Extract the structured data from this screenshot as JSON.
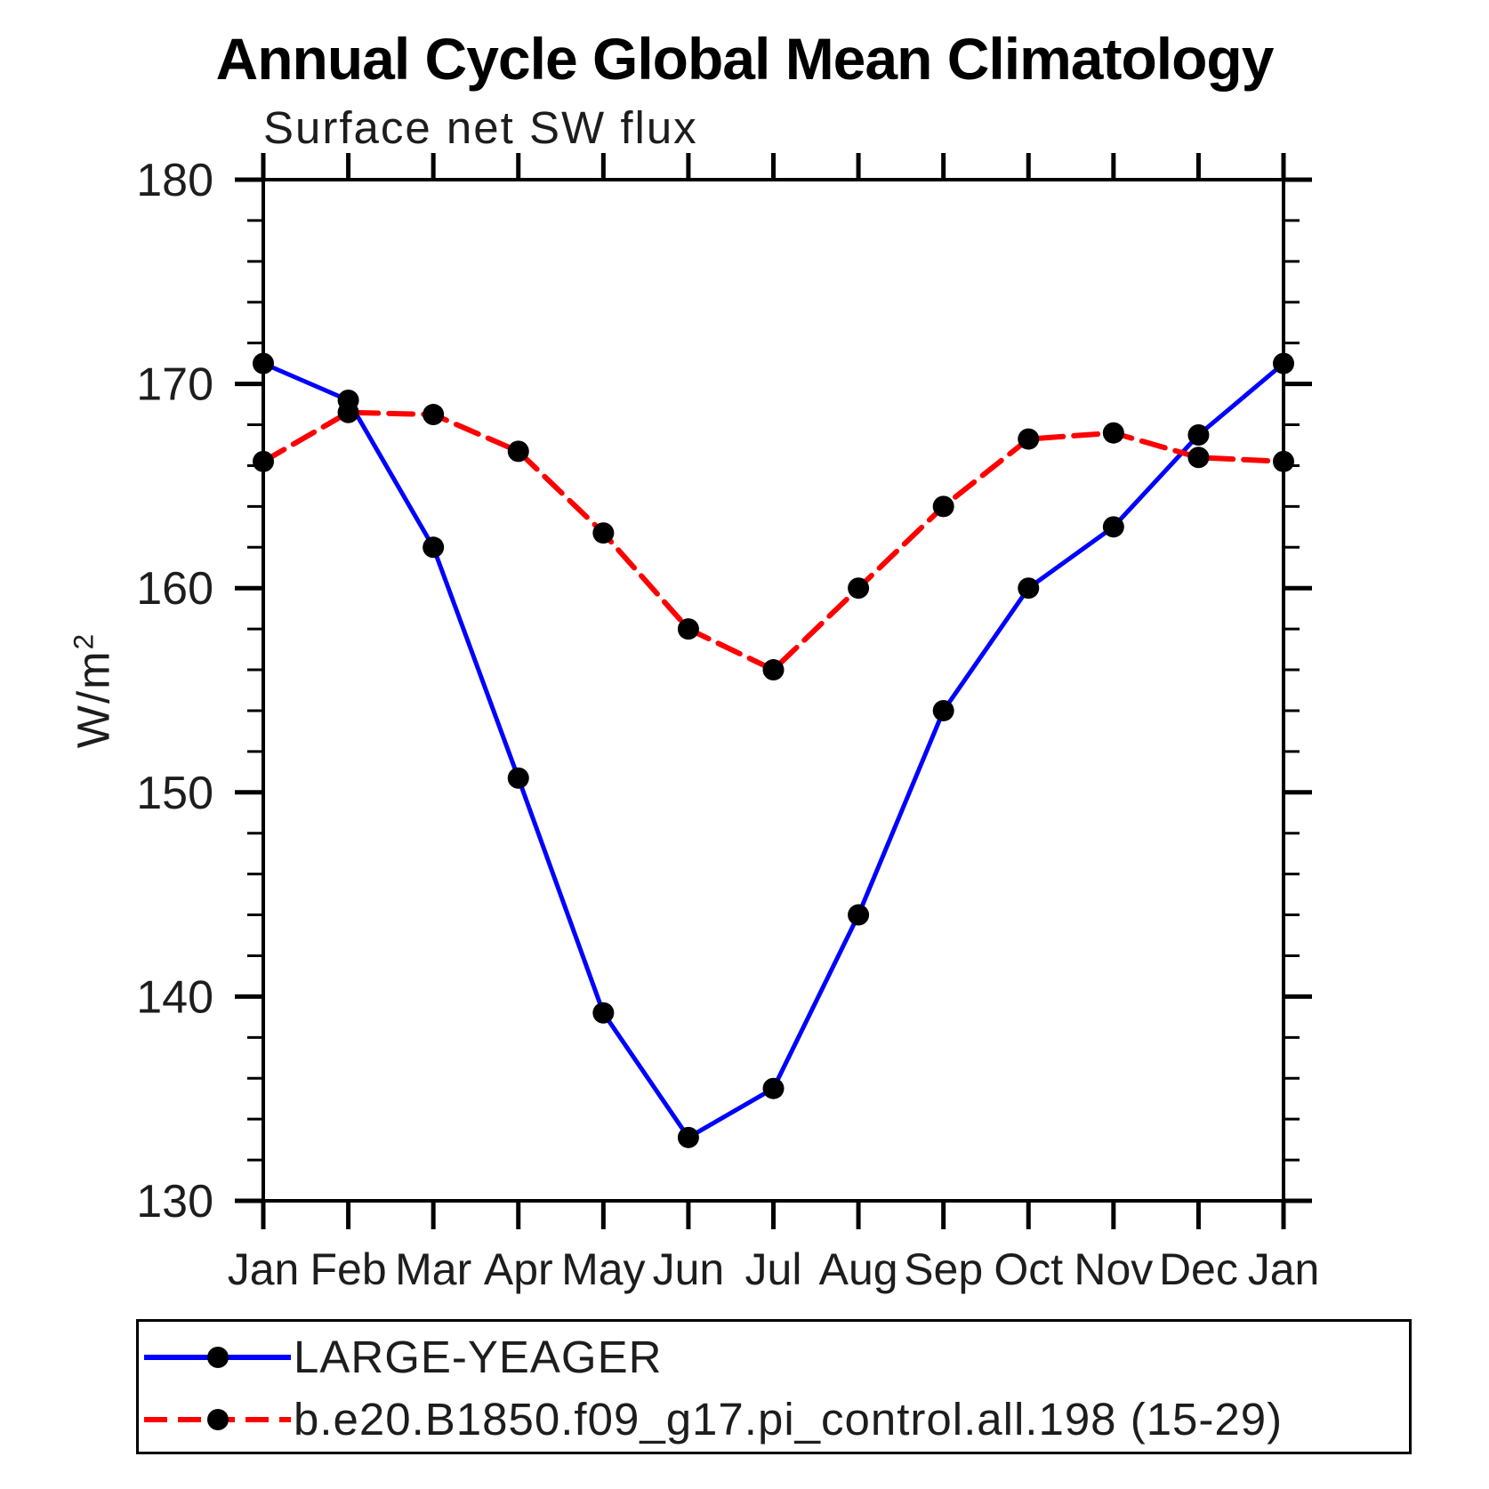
{
  "title": "Annual Cycle Global Mean Climatology",
  "subtitle": "Surface net SW flux",
  "y_axis": {
    "label_base": "W/m",
    "label_exponent": "2",
    "tick_labels": [
      "130",
      "140",
      "150",
      "160",
      "170",
      "180"
    ]
  },
  "x_axis": {
    "tick_labels": [
      "Jan",
      "Feb",
      "Mar",
      "Apr",
      "May",
      "Jun",
      "Jul",
      "Aug",
      "Sep",
      "Oct",
      "Nov",
      "Dec",
      "Jan"
    ]
  },
  "colors": {
    "series1": "#0000ff",
    "series2": "#ff0000",
    "marker": "#000000",
    "axis": "#000000"
  },
  "chart_data": {
    "type": "line",
    "title": "Annual Cycle Global Mean Climatology",
    "subtitle": "Surface net SW flux",
    "xlabel": "",
    "ylabel": "W/m^2",
    "ylim": [
      130,
      180
    ],
    "y_major_tick_step": 10,
    "y_minor_tick_step": 2,
    "grid": false,
    "legend_position": "bottom-left-box",
    "categories": [
      "Jan",
      "Feb",
      "Mar",
      "Apr",
      "May",
      "Jun",
      "Jul",
      "Aug",
      "Sep",
      "Oct",
      "Nov",
      "Dec",
      "Jan"
    ],
    "series": [
      {
        "name": "LARGE-YEAGER",
        "color": "#0000ff",
        "line_style": "solid",
        "marker": "filled-circle",
        "marker_color": "#000000",
        "values": [
          171.0,
          169.2,
          162.0,
          150.7,
          139.2,
          133.1,
          135.5,
          144.0,
          154.0,
          160.0,
          163.0,
          167.5,
          171.0
        ]
      },
      {
        "name": "b.e20.B1850.f09_g17.pi_control.all.198 (15-29)",
        "color": "#ff0000",
        "line_style": "dashed",
        "marker": "filled-circle",
        "marker_color": "#000000",
        "values": [
          166.2,
          168.6,
          168.5,
          166.7,
          162.7,
          158.0,
          156.0,
          160.0,
          164.0,
          167.3,
          167.6,
          166.4,
          166.2
        ]
      }
    ]
  }
}
